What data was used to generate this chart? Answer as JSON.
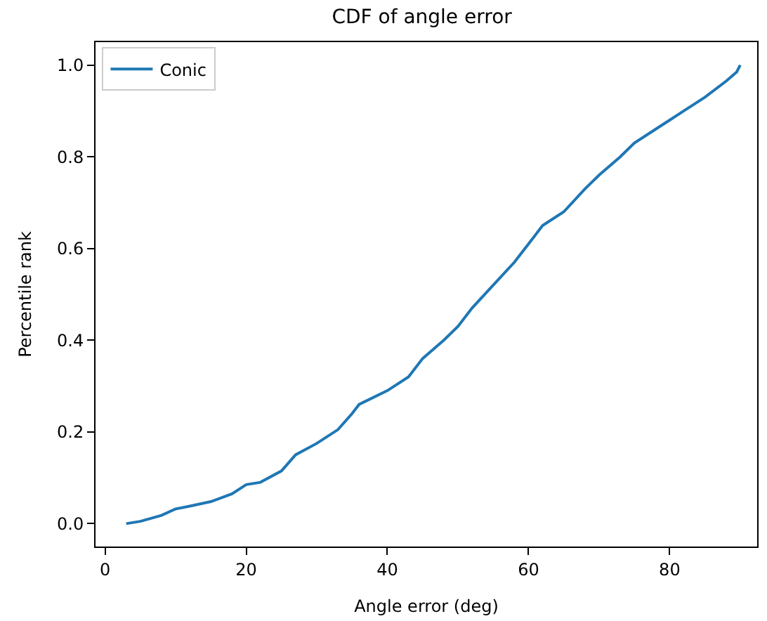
{
  "chart_data": {
    "type": "line",
    "title": "CDF of angle error",
    "xlabel": "Angle error (deg)",
    "ylabel": "Percentile rank",
    "x": [
      3,
      5,
      8,
      10,
      12,
      15,
      18,
      20,
      22,
      25,
      27,
      30,
      33,
      35,
      36,
      40,
      43,
      45,
      48,
      50,
      52,
      55,
      58,
      60,
      62,
      65,
      68,
      70,
      73,
      75,
      78,
      80,
      82,
      85,
      88,
      89.5,
      90
    ],
    "series": [
      {
        "name": "Conic",
        "color": "#1f77b4",
        "values": [
          0,
          0.005,
          0.018,
          0.032,
          0.038,
          0.048,
          0.065,
          0.085,
          0.09,
          0.115,
          0.15,
          0.175,
          0.205,
          0.24,
          0.26,
          0.29,
          0.32,
          0.36,
          0.4,
          0.43,
          0.47,
          0.52,
          0.57,
          0.61,
          0.65,
          0.68,
          0.73,
          0.76,
          0.8,
          0.83,
          0.86,
          0.88,
          0.9,
          0.93,
          0.965,
          0.985,
          1.0
        ]
      }
    ],
    "xlim": [
      -1.35,
      92.4
    ],
    "ylim": [
      -0.05,
      1.05
    ],
    "xticks": [
      0,
      20,
      40,
      60,
      80
    ],
    "yticks": [
      {
        "value": 0,
        "label": "0.0"
      },
      {
        "value": 0.2,
        "label": "0.2"
      },
      {
        "value": 0.4,
        "label": "0.4"
      },
      {
        "value": 0.6,
        "label": "0.6"
      },
      {
        "value": 0.8,
        "label": "0.8"
      },
      {
        "value": 1.0,
        "label": "1.0"
      }
    ],
    "legend": "top left"
  }
}
